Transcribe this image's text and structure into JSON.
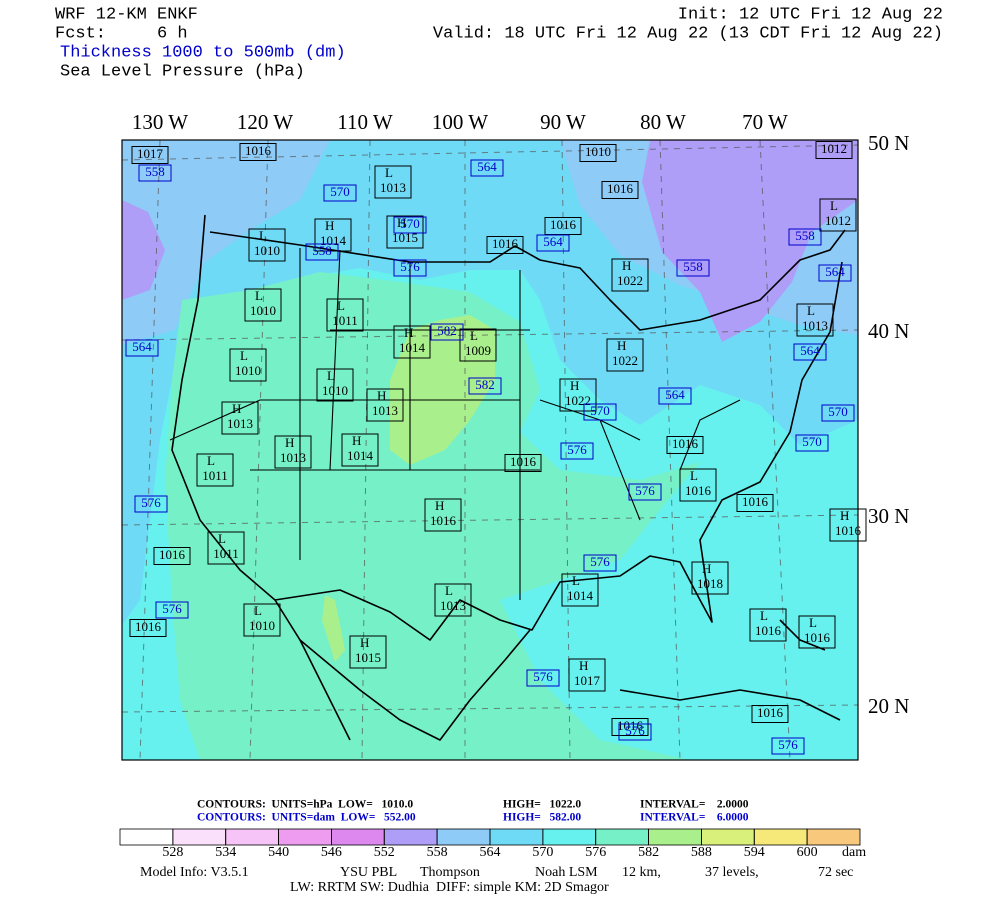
{
  "header": {
    "model": "WRF 12-KM ENKF",
    "fcst": "Fcst:     6 h",
    "init": "Init: 12 UTC Fri 12 Aug 22",
    "valid": "Valid: 18 UTC Fri 12 Aug 22 (13 CDT Fri 12 Aug 22)",
    "field1": "Thickness 1000 to 500mb (dm)",
    "field2": "Sea Level Pressure (hPa)"
  },
  "map": {
    "longitudes": [
      "130 W",
      "120 W",
      "110 W",
      "100 W",
      "90 W",
      "80 W",
      "70 W"
    ],
    "latitudes": [
      "50 N",
      "40 N",
      "30 N",
      "20 N"
    ],
    "pressure_labels": [
      {
        "value": 1017
      },
      {
        "value": 1016
      },
      {
        "value": 1010
      },
      {
        "value": 1012
      },
      {
        "letter": "L",
        "value": 1013
      },
      {
        "value": 1016
      },
      {
        "letter": "H",
        "value": 1014
      },
      {
        "letter": "H",
        "value": 1015
      },
      {
        "value": 1016
      },
      {
        "value": 1016
      },
      {
        "letter": "L",
        "value": 1010
      },
      {
        "letter": "L",
        "value": 1012
      },
      {
        "letter": "H",
        "value": 1022
      },
      {
        "letter": "L",
        "value": 1010
      },
      {
        "letter": "L",
        "value": 1011
      },
      {
        "letter": "L",
        "value": 1013
      },
      {
        "letter": "H",
        "value": 1014
      },
      {
        "letter": "L",
        "value": 1009
      },
      {
        "letter": "H",
        "value": 1022
      },
      {
        "letter": "L",
        "value": 1010
      },
      {
        "letter": "L",
        "value": 1010
      },
      {
        "letter": "H",
        "value": 1013
      },
      {
        "letter": "H",
        "value": 1022
      },
      {
        "letter": "H",
        "value": 1013
      },
      {
        "letter": "H",
        "value": 1013
      },
      {
        "letter": "H",
        "value": 1014
      },
      {
        "value": 1016
      },
      {
        "value": 1016
      },
      {
        "letter": "L",
        "value": 1011
      },
      {
        "letter": "L",
        "value": 1016
      },
      {
        "letter": "H",
        "value": 1016
      },
      {
        "value": 1016
      },
      {
        "letter": "H",
        "value": 1016
      },
      {
        "letter": "L",
        "value": 1011
      },
      {
        "value": 1016
      },
      {
        "letter": "L",
        "value": 1014
      },
      {
        "letter": "H",
        "value": 1018
      },
      {
        "letter": "L",
        "value": 1013
      },
      {
        "letter": "L",
        "value": 1010
      },
      {
        "value": 1016
      },
      {
        "letter": "L",
        "value": 1016
      },
      {
        "letter": "L",
        "value": 1016
      },
      {
        "letter": "H",
        "value": 1015
      },
      {
        "letter": "H",
        "value": 1017
      },
      {
        "value": 1016
      },
      {
        "value": 1016
      }
    ],
    "thickness_labels": [
      558,
      570,
      564,
      570,
      564,
      576,
      558,
      558,
      564,
      558,
      582,
      582,
      564,
      564,
      570,
      564,
      570,
      570,
      576,
      576,
      576,
      576,
      576,
      576,
      576,
      576
    ]
  },
  "contours": [
    {
      "color": "#000000",
      "items": [
        "CONTOURS:  UNITS=hPa  LOW=   1010.0",
        "HIGH=   1022.0",
        "INTERVAL=    2.0000"
      ]
    },
    {
      "color": "#0000cc",
      "items": [
        "CONTOURS:  UNITS=dam  LOW=   552.00",
        "HIGH=   582.00",
        "INTERVAL=    6.0000"
      ]
    }
  ],
  "colorbar": {
    "levels": [
      528,
      534,
      540,
      546,
      552,
      558,
      564,
      570,
      576,
      582,
      588,
      594,
      600
    ],
    "unit": "dam",
    "colors": [
      "#ffffff",
      "#fbe0fb",
      "#f6c4f6",
      "#ee9cef",
      "#dc88ef",
      "#ae9ef7",
      "#8ecbf7",
      "#6fdaf6",
      "#66f0ee",
      "#76f0c6",
      "#a9f08c",
      "#d9f07a",
      "#f6e97a",
      "#f8c97c"
    ]
  },
  "footer": {
    "line1": [
      "Model Info: V3.5.1",
      "YSU PBL",
      "Thompson",
      "Noah LSM",
      "12 km,",
      "37 levels,",
      "72 sec"
    ],
    "line2": "LW: RRTM SW: Dudhia  DIFF: simple KM: 2D Smagor"
  }
}
